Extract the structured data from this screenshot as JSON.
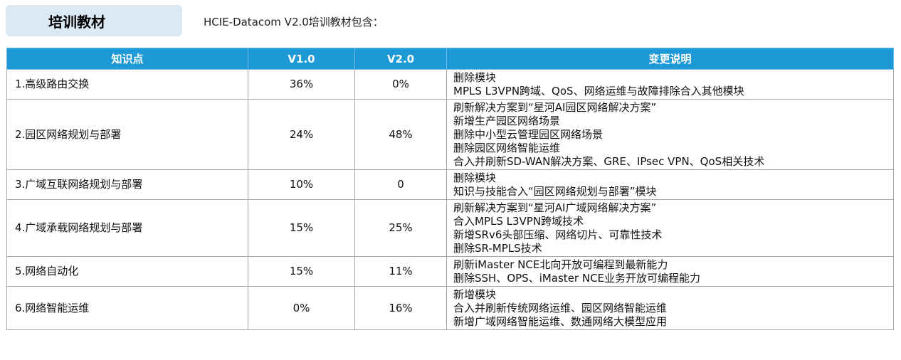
{
  "badge_label": "培训教材",
  "intro_text": "HCIE-Datacom V2.0培训教材包含：",
  "table": {
    "headers": [
      "知识点",
      "V1.0",
      "V2.0",
      "变更说明"
    ],
    "rows": [
      {
        "topic": "1.高级路由交换",
        "v1": "36%",
        "v2": "0%",
        "changes": [
          "删除模块",
          "MPLS L3VPN跨域、QoS、网络运维与故障排除合入其他模块"
        ]
      },
      {
        "topic": "2.园区网络规划与部署",
        "v1": "24%",
        "v2": "48%",
        "changes": [
          "刷新解决方案到“星河AI园区网络解决方案”",
          "新增生产园区网络场景",
          "删除中小型云管理园区网络场景",
          "删除园区网络智能运维",
          "合入并刷新SD-WAN解决方案、GRE、IPsec VPN、QoS相关技术"
        ]
      },
      {
        "topic": "3.广域互联网络规划与部署",
        "v1": "10%",
        "v2": "0",
        "changes": [
          "删除模块",
          "知识与技能合入“园区网络规划与部署”模块"
        ]
      },
      {
        "topic": "4.广域承载网络规划与部署",
        "v1": "15%",
        "v2": "25%",
        "changes": [
          "刷新解决方案到“星河AI广域网络解决方案”",
          "合入MPLS L3VPN跨域技术",
          "新增SRv6头部压缩、网络切片、可靠性技术",
          "删除SR-MPLS技术"
        ]
      },
      {
        "topic": "5.网络自动化",
        "v1": "15%",
        "v2": "11%",
        "changes": [
          "刷新iMaster NCE北向开放可编程到最新能力",
          "删除SSH、OPS、iMaster NCE业务开放可编程能力"
        ]
      },
      {
        "topic": "6.网络智能运维",
        "v1": "0%",
        "v2": "16%",
        "changes": [
          "新增模块",
          "合入并刷新传统网络运维、园区网络智能运维",
          "新增广域网络智能运维、数通网络大模型应用"
        ]
      }
    ]
  }
}
